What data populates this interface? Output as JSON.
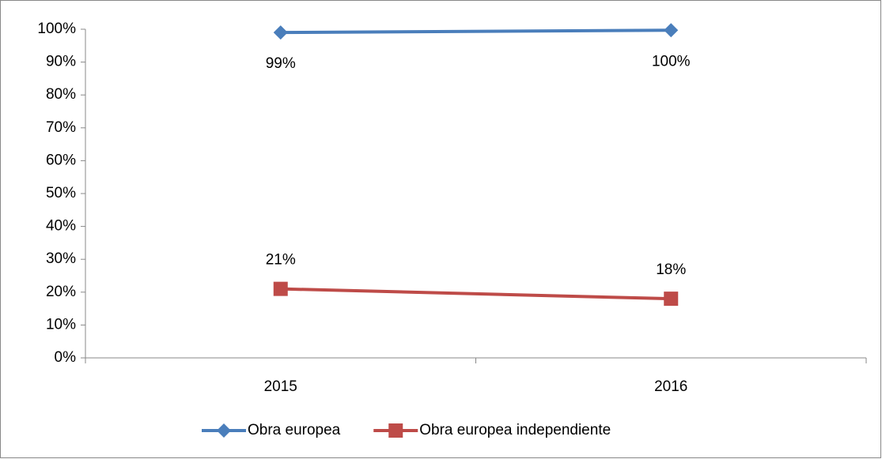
{
  "chart_data": {
    "type": "line",
    "categories": [
      "2015",
      "2016"
    ],
    "series": [
      {
        "name": "Obra europea",
        "color": "#4a7ebb",
        "marker": "diamond",
        "values": [
          99,
          99.7
        ],
        "value_labels": [
          "99%",
          "100%"
        ]
      },
      {
        "name": "Obra europea independiente",
        "color": "#be4b48",
        "marker": "square",
        "values": [
          21,
          18
        ],
        "value_labels": [
          "21%",
          "18%"
        ]
      }
    ],
    "ylim": [
      0,
      100
    ],
    "yticks": [
      {
        "value": 0,
        "label": "0%"
      },
      {
        "value": 10,
        "label": "10%"
      },
      {
        "value": 20,
        "label": "20%"
      },
      {
        "value": 30,
        "label": "30%"
      },
      {
        "value": 40,
        "label": "40%"
      },
      {
        "value": 50,
        "label": "50%"
      },
      {
        "value": 60,
        "label": "60%"
      },
      {
        "value": 70,
        "label": "70%"
      },
      {
        "value": 80,
        "label": "80%"
      },
      {
        "value": 90,
        "label": "90%"
      },
      {
        "value": 100,
        "label": "100%"
      }
    ],
    "grid": false,
    "legend": "bottom"
  }
}
